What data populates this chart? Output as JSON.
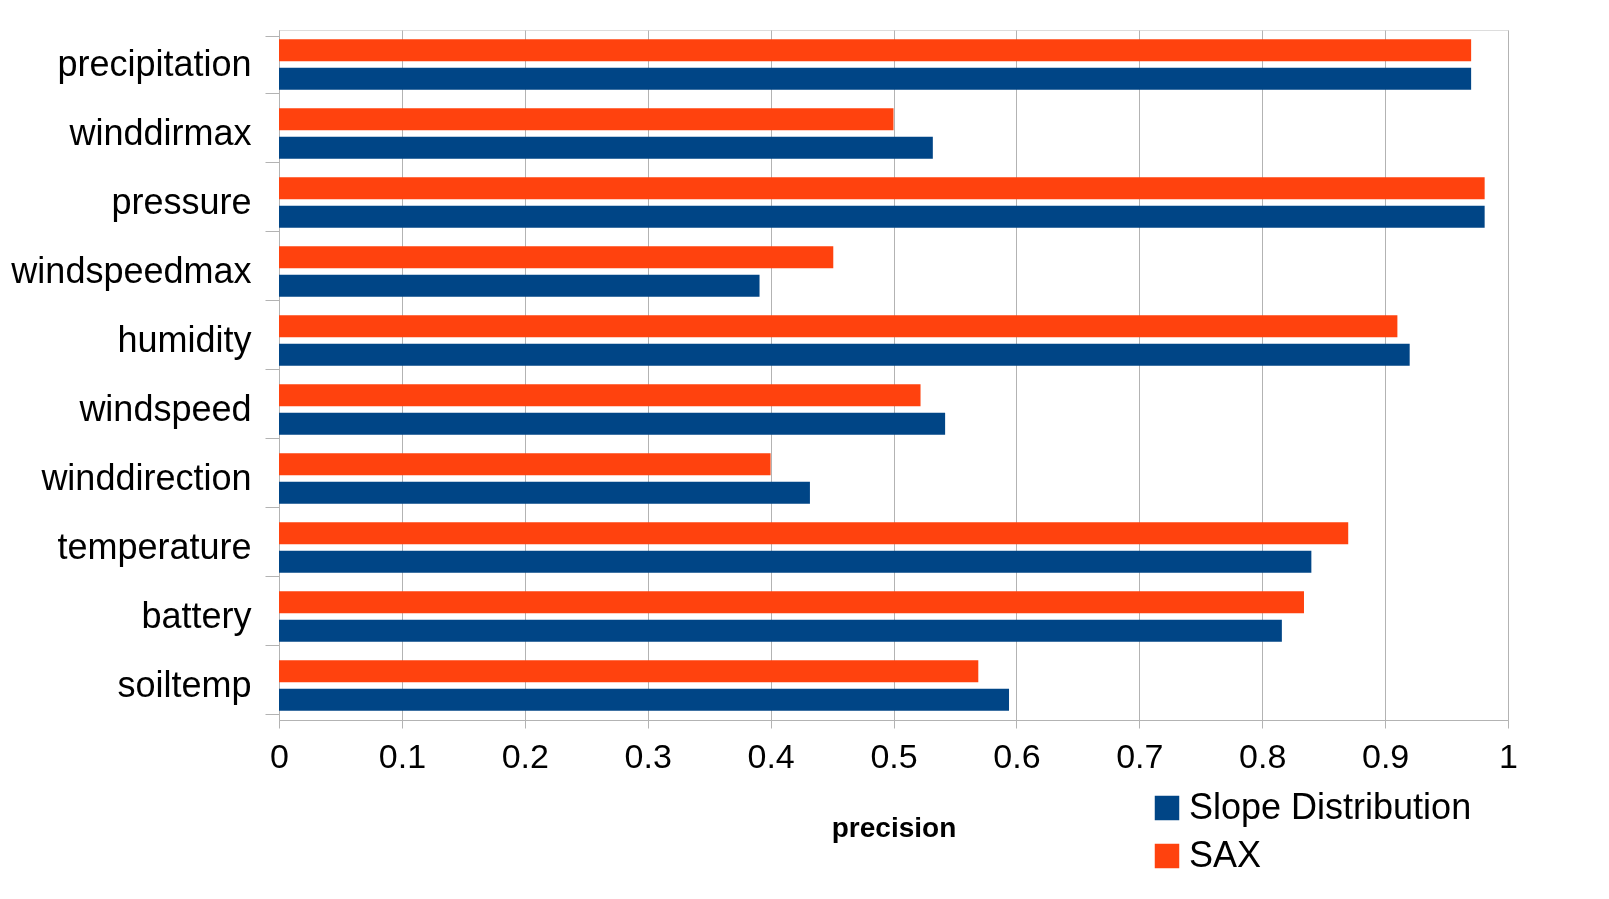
{
  "chart_data": {
    "type": "bar",
    "orientation": "horizontal",
    "xlabel": "precision",
    "categories": [
      "precipitation",
      "winddirmax",
      "pressure",
      "windspeedmax",
      "humidity",
      "windspeed",
      "winddirection",
      "temperature",
      "battery",
      "soiltemp"
    ],
    "series": [
      {
        "name": "Slope Distribution",
        "color": "#004586",
        "values": [
          0.97,
          0.532,
          0.981,
          0.391,
          0.92,
          0.542,
          0.432,
          0.84,
          0.816,
          0.594
        ]
      },
      {
        "name": "SAX",
        "color": "#ff420e",
        "values": [
          0.97,
          0.5,
          0.981,
          0.451,
          0.91,
          0.522,
          0.4,
          0.87,
          0.834,
          0.569
        ]
      }
    ],
    "xlim": [
      0,
      1
    ],
    "xticks": [
      0,
      0.1,
      0.2,
      0.3,
      0.4,
      0.5,
      0.6,
      0.7,
      0.8,
      0.9,
      1
    ],
    "grid": "x",
    "legend": "bottom right"
  }
}
